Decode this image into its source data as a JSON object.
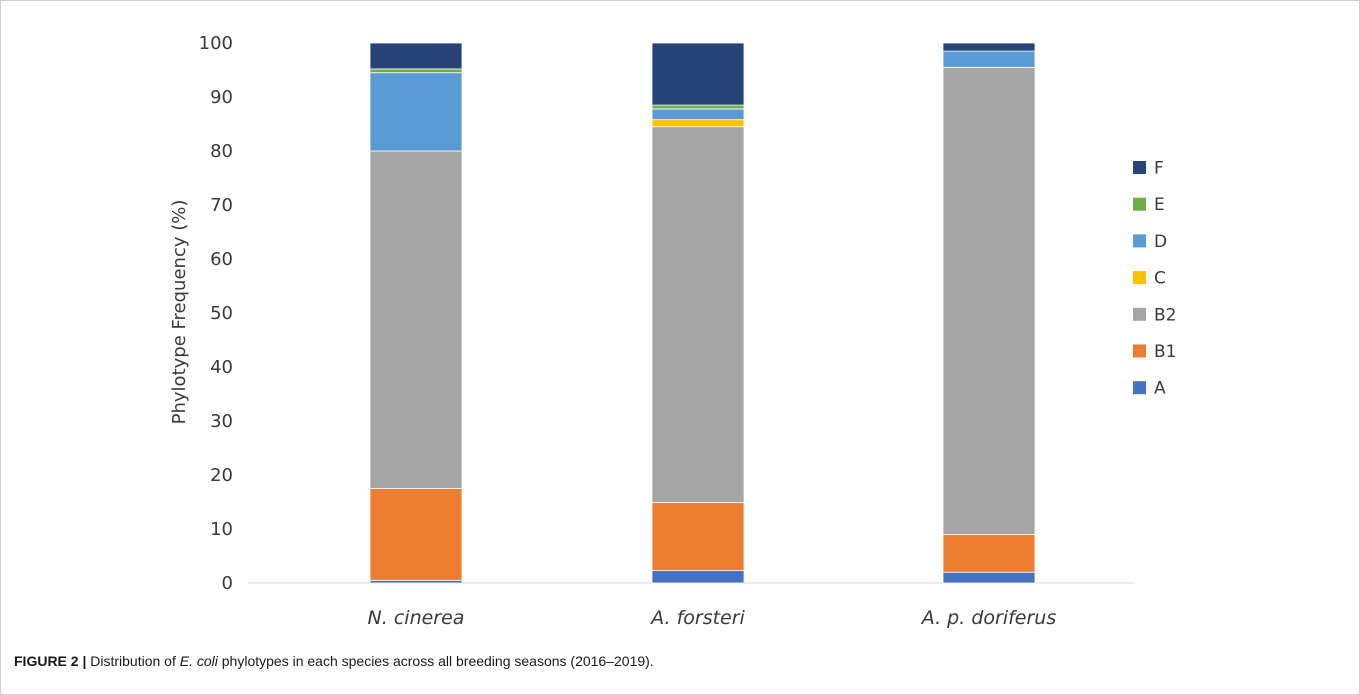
{
  "caption": {
    "figure_label": "FIGURE 2 |",
    "text_before": " Distribution of ",
    "italic": "E. coli",
    "text_after": " phylotypes in each species across all breeding seasons (2016–2019)."
  },
  "chart_data": {
    "type": "bar",
    "stacked": true,
    "categories": [
      "N. cinerea",
      "A. forsteri",
      "A. p. doriferus"
    ],
    "ylabel": "Phylotype Frequency (%)",
    "ylim": [
      0,
      100
    ],
    "yticks": [
      0,
      10,
      20,
      30,
      40,
      50,
      60,
      70,
      80,
      90,
      100
    ],
    "legend_position": "right",
    "series": [
      {
        "name": "A",
        "color": "#4472C4",
        "values": [
          0.5,
          2.3,
          2.0
        ]
      },
      {
        "name": "B1",
        "color": "#ED7D31",
        "values": [
          17.0,
          12.6,
          7.0
        ]
      },
      {
        "name": "B2",
        "color": "#A5A5A5",
        "values": [
          62.5,
          69.6,
          86.5
        ]
      },
      {
        "name": "C",
        "color": "#FFC000",
        "values": [
          0,
          1.3,
          0
        ]
      },
      {
        "name": "D",
        "color": "#5B9BD5",
        "values": [
          14.5,
          2.0,
          3.0
        ]
      },
      {
        "name": "E",
        "color": "#70AD47",
        "values": [
          0.7,
          0.7,
          0
        ]
      },
      {
        "name": "F",
        "color": "#264478",
        "values": [
          4.8,
          11.5,
          1.5
        ]
      }
    ]
  }
}
